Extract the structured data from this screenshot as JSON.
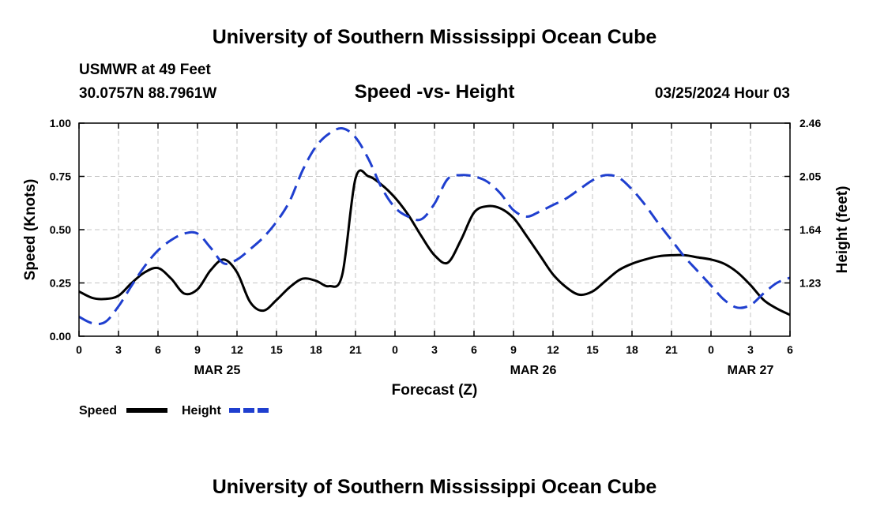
{
  "header": {
    "title": "University of Southern Mississippi Ocean Cube",
    "station": "USMWR at 49 Feet",
    "coords": "30.0757N  88.7961W",
    "subtitle": "Speed -vs- Height",
    "datetime": "03/25/2024 Hour 03",
    "footer_title": "University of Southern Mississippi Ocean Cube"
  },
  "chart_data": {
    "type": "line",
    "title": "Speed -vs- Height",
    "xlabel": "Forecast (Z)",
    "ylabel": "Speed (Knots)",
    "y2label": "Height (feet)",
    "x_tick_labels": [
      "0",
      "3",
      "6",
      "9",
      "12",
      "15",
      "18",
      "21",
      "0",
      "3",
      "6",
      "9",
      "12",
      "15",
      "18",
      "21",
      "0",
      "3",
      "6"
    ],
    "date_labels": [
      {
        "label": "MAR 25",
        "tick_index": 3.5
      },
      {
        "label": "MAR 26",
        "tick_index": 11.5
      },
      {
        "label": "MAR 27",
        "tick_index": 17
      }
    ],
    "ylim": [
      0,
      1.0
    ],
    "y_ticks": [
      "0.00",
      "0.25",
      "0.50",
      "0.75",
      "1.00"
    ],
    "y2lim": [
      0.82,
      2.46
    ],
    "y2_ticks": [
      "1.23",
      "1.64",
      "2.05",
      "2.46"
    ],
    "grid": true,
    "legend_position": "bottom-left",
    "series": [
      {
        "name": "Speed",
        "axis": "left",
        "color": "#000000",
        "dash": "solid",
        "x": [
          0,
          1,
          2,
          3,
          4,
          5,
          6,
          7,
          8,
          9,
          10,
          11,
          12,
          13,
          14,
          15,
          16,
          17,
          18,
          19,
          20,
          21,
          22,
          23,
          24,
          25,
          26,
          27,
          28,
          29,
          30,
          31,
          32,
          33,
          34,
          35,
          36,
          37,
          38,
          39,
          40,
          41,
          42,
          43,
          44,
          45,
          46,
          47,
          48,
          49,
          50,
          51,
          52,
          53,
          54
        ],
        "values": [
          0.21,
          0.18,
          0.175,
          0.19,
          0.25,
          0.3,
          0.32,
          0.27,
          0.2,
          0.22,
          0.31,
          0.36,
          0.3,
          0.16,
          0.12,
          0.17,
          0.23,
          0.27,
          0.26,
          0.235,
          0.29,
          0.74,
          0.75,
          0.71,
          0.65,
          0.57,
          0.47,
          0.38,
          0.345,
          0.45,
          0.58,
          0.61,
          0.6,
          0.555,
          0.47,
          0.38,
          0.29,
          0.23,
          0.195,
          0.21,
          0.26,
          0.31,
          0.34,
          0.36,
          0.375,
          0.38,
          0.38,
          0.37,
          0.36,
          0.34,
          0.3,
          0.24,
          0.17,
          0.13,
          0.1
        ]
      },
      {
        "name": "Height",
        "axis": "right",
        "color": "#1f3fcf",
        "dash": "dashed",
        "x": [
          0,
          1,
          2,
          3,
          4,
          5,
          6,
          7,
          8,
          9,
          10,
          11,
          12,
          13,
          14,
          15,
          16,
          17,
          18,
          19,
          20,
          21,
          22,
          23,
          24,
          25,
          26,
          27,
          28,
          29,
          30,
          31,
          32,
          33,
          34,
          35,
          36,
          37,
          38,
          39,
          40,
          41,
          42,
          43,
          44,
          45,
          46,
          47,
          48,
          49,
          50,
          51,
          52,
          53,
          54
        ],
        "values": [
          0.97,
          0.92,
          0.93,
          1.05,
          1.21,
          1.36,
          1.48,
          1.56,
          1.61,
          1.61,
          1.5,
          1.38,
          1.41,
          1.49,
          1.58,
          1.7,
          1.86,
          2.1,
          2.28,
          2.38,
          2.42,
          2.35,
          2.18,
          1.96,
          1.81,
          1.74,
          1.72,
          1.84,
          2.03,
          2.06,
          2.05,
          2.01,
          1.92,
          1.79,
          1.74,
          1.78,
          1.83,
          1.88,
          1.95,
          2.02,
          2.06,
          2.04,
          1.95,
          1.83,
          1.69,
          1.56,
          1.43,
          1.32,
          1.21,
          1.1,
          1.04,
          1.06,
          1.15,
          1.23,
          1.27
        ]
      }
    ]
  }
}
